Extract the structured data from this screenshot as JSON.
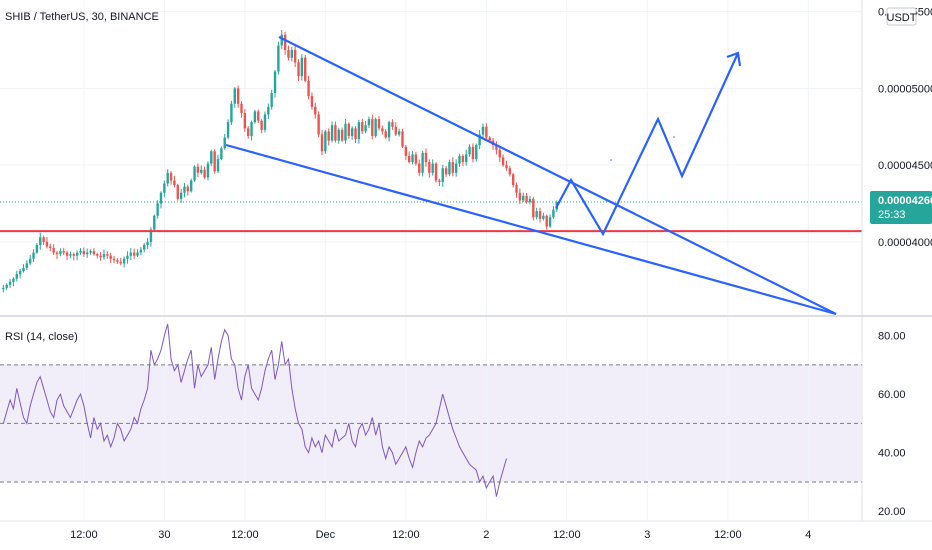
{
  "header": {
    "title": "SHIB / TetherUS, 30, BINANCE",
    "currency_button": "USDT"
  },
  "colors": {
    "up": "#26a69a",
    "down": "#ef5350",
    "trendline": "#2962ff",
    "support": "#f23645",
    "rsi": "#7e57c2",
    "rsi_band": "#ede7f6",
    "price_label": "#26a69a"
  },
  "chart_data": [
    {
      "type": "candlestick",
      "title": "SHIB / TetherUS, 30, BINANCE",
      "y_ticks": [
        "0.00005500",
        "0.00005000",
        "0.00004500",
        "0.00004000"
      ],
      "y_tick_values": [
        5.5e-05,
        5e-05,
        4.5e-05,
        4e-05
      ],
      "ylim": [
        3.53e-05,
        5.55e-05
      ],
      "last_price": "0.00004260",
      "last_price_value": 4.26e-05,
      "countdown": "25:33",
      "support_level": 4.07e-05,
      "x_ticks": [
        {
          "label": "12:00",
          "index": 24
        },
        {
          "label": "30",
          "index": 48
        },
        {
          "label": "12:00",
          "index": 72
        },
        {
          "label": "Dec",
          "index": 96
        },
        {
          "label": "12:00",
          "index": 120
        },
        {
          "label": "2",
          "index": 144
        },
        {
          "label": "12:00",
          "index": 168
        },
        {
          "label": "3",
          "index": 192
        },
        {
          "label": "12:00",
          "index": 216
        },
        {
          "label": "4",
          "index": 240
        }
      ],
      "x_range": [
        -1,
        256
      ],
      "candles_start_index": 0,
      "closes": [
        3.7e-05,
        3.72e-05,
        3.74e-05,
        3.76e-05,
        3.79e-05,
        3.81e-05,
        3.83e-05,
        3.86e-05,
        3.89e-05,
        3.93e-05,
        3.98e-05,
        4.03e-05,
        4e-05,
        3.97e-05,
        3.96e-05,
        3.93e-05,
        3.92e-05,
        3.94e-05,
        3.93e-05,
        3.91e-05,
        3.92e-05,
        3.91e-05,
        3.93e-05,
        3.94e-05,
        3.92e-05,
        3.93e-05,
        3.94e-05,
        3.92e-05,
        3.91e-05,
        3.9e-05,
        3.92e-05,
        3.91e-05,
        3.89e-05,
        3.88e-05,
        3.87e-05,
        3.86e-05,
        3.89e-05,
        3.91e-05,
        3.93e-05,
        3.91e-05,
        3.93e-05,
        3.95e-05,
        3.98e-05,
        4e-05,
        4.08e-05,
        4.17e-05,
        4.25e-05,
        4.32e-05,
        4.38e-05,
        4.45e-05,
        4.4e-05,
        4.37e-05,
        4.28e-05,
        4.32e-05,
        4.36e-05,
        4.33e-05,
        4.4e-05,
        4.49e-05,
        4.45e-05,
        4.47e-05,
        4.42e-05,
        4.51e-05,
        4.59e-05,
        4.46e-05,
        4.54e-05,
        4.61e-05,
        4.68e-05,
        4.78e-05,
        4.9e-05,
        5e-05,
        4.9e-05,
        4.84e-05,
        4.74e-05,
        4.69e-05,
        4.78e-05,
        4.85e-05,
        4.79e-05,
        4.73e-05,
        4.83e-05,
        4.88e-05,
        4.97e-05,
        5.11e-05,
        5.28e-05,
        5.35e-05,
        5.25e-05,
        5.2e-05,
        5.25e-05,
        5.17e-05,
        5.08e-05,
        5.2e-05,
        5.05e-05,
        4.95e-05,
        4.88e-05,
        4.83e-05,
        4.7e-05,
        4.59e-05,
        4.72e-05,
        4.66e-05,
        4.76e-05,
        4.66e-05,
        4.73e-05,
        4.66e-05,
        4.77e-05,
        4.69e-05,
        4.74e-05,
        4.67e-05,
        4.78e-05,
        4.72e-05,
        4.76e-05,
        4.8e-05,
        4.69e-05,
        4.8e-05,
        4.74e-05,
        4.72e-05,
        4.68e-05,
        4.78e-05,
        4.75e-05,
        4.7e-05,
        4.72e-05,
        4.62e-05,
        4.56e-05,
        4.52e-05,
        4.57e-05,
        4.51e-05,
        4.45e-05,
        4.58e-05,
        4.52e-05,
        4.45e-05,
        4.51e-05,
        4.4e-05,
        4.39e-05,
        4.48e-05,
        4.44e-05,
        4.52e-05,
        4.45e-05,
        4.51e-05,
        4.56e-05,
        4.52e-05,
        4.57e-05,
        4.62e-05,
        4.54e-05,
        4.63e-05,
        4.7e-05,
        4.75e-05,
        4.68e-05,
        4.66e-05,
        4.63e-05,
        4.6e-05,
        4.55e-05,
        4.5e-05,
        4.48e-05,
        4.44e-05,
        4.37e-05,
        4.32e-05,
        4.27e-05,
        4.3e-05,
        4.26e-05,
        4.28e-05,
        4.16e-05,
        4.2e-05,
        4.15e-05,
        4.17e-05,
        4.1e-05,
        4.16e-05,
        4.21e-05,
        4.26e-05
      ],
      "rsi": {
        "label": "RSI (14, close)",
        "y_ticks": [
          "80.00",
          "60.00",
          "40.00",
          "20.00"
        ],
        "y_tick_values": [
          80,
          60,
          40,
          20
        ],
        "ylim": [
          17,
          86
        ],
        "bands": {
          "upper": 70,
          "middle": 50,
          "lower": 30
        },
        "values": [
          50,
          54,
          58,
          55,
          62,
          57,
          52,
          50,
          56,
          60,
          64,
          66,
          62,
          58,
          54,
          52,
          58,
          60,
          56,
          54,
          52,
          55,
          58,
          60,
          56,
          50,
          45,
          52,
          48,
          50,
          44,
          46,
          42,
          45,
          50,
          48,
          44,
          46,
          48,
          52,
          50,
          55,
          58,
          62,
          75,
          70,
          72,
          75,
          80,
          84,
          72,
          68,
          70,
          64,
          68,
          72,
          75,
          62,
          70,
          66,
          68,
          70,
          76,
          65,
          72,
          78,
          82,
          80,
          72,
          70,
          62,
          58,
          66,
          70,
          62,
          60,
          58,
          62,
          68,
          72,
          75,
          65,
          70,
          78,
          70,
          72,
          62,
          55,
          50,
          48,
          42,
          40,
          45,
          42,
          44,
          40,
          46,
          44,
          42,
          48,
          44,
          45,
          46,
          50,
          44,
          42,
          48,
          50,
          46,
          48,
          52,
          46,
          50,
          42,
          38,
          42,
          40,
          36,
          38,
          40,
          42,
          38,
          35,
          40,
          44,
          42,
          45,
          46,
          48,
          50,
          55,
          60,
          56,
          52,
          48,
          45,
          42,
          40,
          38,
          36,
          35,
          34,
          30,
          32,
          28,
          30,
          32,
          25,
          30,
          34,
          38
        ]
      }
    }
  ]
}
